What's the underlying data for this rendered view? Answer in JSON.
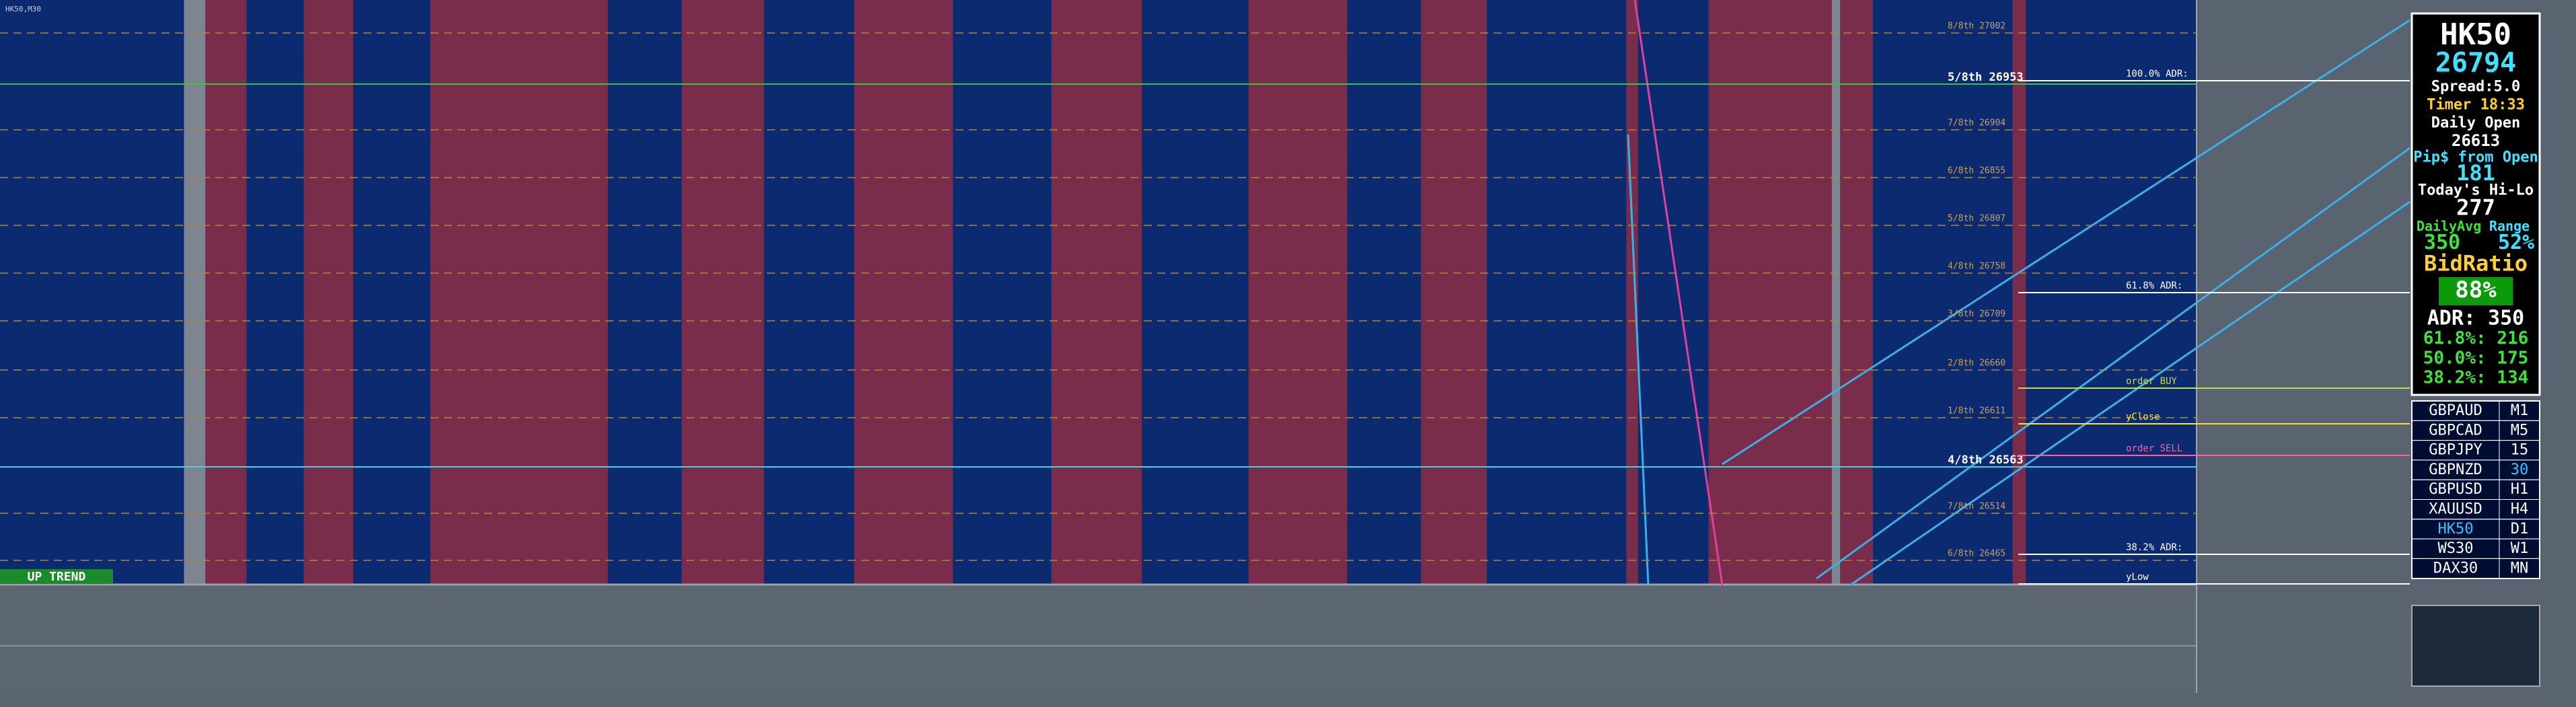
{
  "window_title": "HK50,M30",
  "trend_label": "UP TREND",
  "levels": [
    "8/8th 27002",
    "5/8th 26953",
    "7/8th 26904",
    "6/8th 26855",
    "5/8th 26807",
    "4/8th 26758",
    "3/8th 26709",
    "2/8th 26660",
    "1/8th 26611",
    "4/8th 26563",
    "7/8th 26514",
    "6/8th 26465"
  ],
  "tags": [
    "100.0% ADR:",
    "61.8% ADR:",
    "38.2% ADR:",
    "order BUY",
    "yClose",
    "order SELL",
    "yLow"
  ],
  "panel": {
    "symbol": "HK50",
    "price": "26794",
    "spread": "Spread:5.0",
    "timer": "Timer 18:33",
    "daily_open_label": "Daily Open",
    "daily_open": "26613",
    "pips_label": "Pip$ from Open",
    "pips": "181",
    "hilo_label": "Today's Hi-Lo",
    "hilo": "277",
    "avg_label": "DailyAvg",
    "range_label": "Range",
    "avg": "350",
    "range": "52%",
    "bid_label": "BidRatio",
    "bid": "88%",
    "adr": "ADR: 350",
    "adr_618": "61.8%: 216",
    "adr_500": "50.0%: 175",
    "adr_382": "38.2%: 134"
  },
  "symbols": [
    [
      "GBPAUD",
      "M1"
    ],
    [
      "GBPCAD",
      "M5"
    ],
    [
      "GBPJPY",
      "15"
    ],
    [
      "GBPNZD",
      "30"
    ],
    [
      "GBPUSD",
      "H1"
    ],
    [
      "XAUUSD",
      "H4"
    ],
    [
      "HK50",
      "D1"
    ],
    [
      "WS30",
      "W1"
    ],
    [
      "DAX30",
      "MN"
    ]
  ]
}
